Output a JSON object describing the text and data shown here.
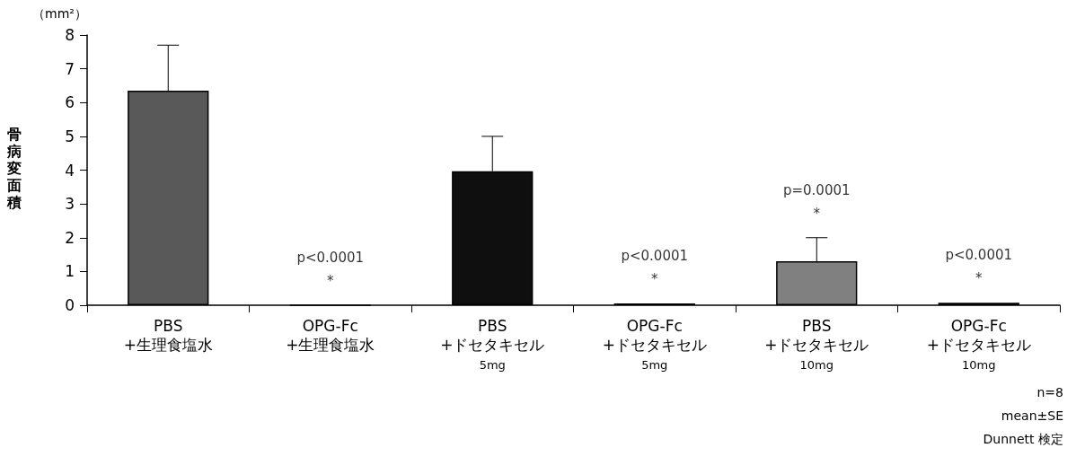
{
  "chart_data": {
    "type": "bar",
    "ylabel": "骨病変面積",
    "categories": [
      "PBS\n+生理食塩水",
      "OPG-Fc\n+生理食塩水",
      "PBS\n+ドセタキセル\n5mg",
      "OPG-Fc\n+ドセタキセル\n5mg",
      "PBS\n+ドセタキセル\n10mg",
      "OPG-Fc\n+ドセタキセル\n10mg"
    ],
    "values": [
      6.35,
      0,
      3.97,
      0.05,
      1.3,
      0.07
    ],
    "colors": [
      "#595959",
      "#595959",
      "#0f0f0f",
      "#595959",
      "#808080",
      "#f2f2f2"
    ],
    "errors": [
      [
        6.35,
        7.7
      ],
      null,
      [
        3.97,
        5.0
      ],
      null,
      [
        1.3,
        2.0
      ],
      null
    ],
    "ylim": [
      0,
      8
    ],
    "yticks": [
      0,
      1,
      2,
      3,
      4,
      5,
      6,
      7,
      8
    ],
    "grid": false,
    "annotations": [
      "（mm²）",
      {
        "text": "p<0.0001\n*",
        "x": "OPG-Fc\n+生理食塩水",
        "y": 0
      },
      {
        "text": "p<0.0001\n*",
        "x": "OPG-Fc\n+ドセタキセル\n5mg",
        "y": 0.05
      },
      {
        "text": "p=0.0001\n*",
        "x": "PBS\n+ドセタキセル\n10mg",
        "y": 2.0
      },
      {
        "text": "p<0.0001\n*",
        "x": "OPG-Fc\n+ドセタキセル\n10mg",
        "y": 0.07
      },
      "n=8",
      "mean±SE",
      "Dunnett 検定"
    ]
  }
}
